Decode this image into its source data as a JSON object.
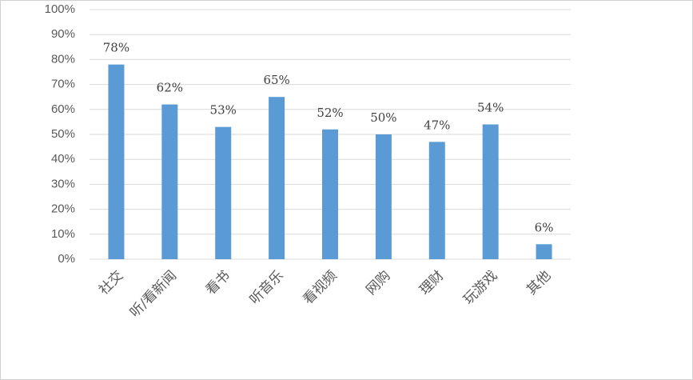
{
  "chart_data": {
    "type": "bar",
    "categories": [
      "社交",
      "听/看新闻",
      "看书",
      "听音乐",
      "看视频",
      "网购",
      "理财",
      "玩游戏",
      "其他"
    ],
    "values": [
      78,
      62,
      53,
      65,
      52,
      50,
      47,
      54,
      6
    ],
    "value_labels": [
      "78%",
      "62%",
      "53%",
      "65%",
      "52%",
      "50%",
      "47%",
      "54%",
      "6%"
    ],
    "color": "#5b9bd5",
    "ylim": [
      0,
      100
    ],
    "yticks": [
      {
        "value": 0,
        "label": "0%"
      },
      {
        "value": 10,
        "label": "10%"
      },
      {
        "value": 20,
        "label": "20%"
      },
      {
        "value": 30,
        "label": "30%"
      },
      {
        "value": 40,
        "label": "40%"
      },
      {
        "value": 50,
        "label": "50%"
      },
      {
        "value": 60,
        "label": "60%"
      },
      {
        "value": 70,
        "label": "70%"
      },
      {
        "value": 80,
        "label": "80%"
      },
      {
        "value": 90,
        "label": "90%"
      },
      {
        "value": 100,
        "label": "100%"
      }
    ],
    "grid": true
  }
}
